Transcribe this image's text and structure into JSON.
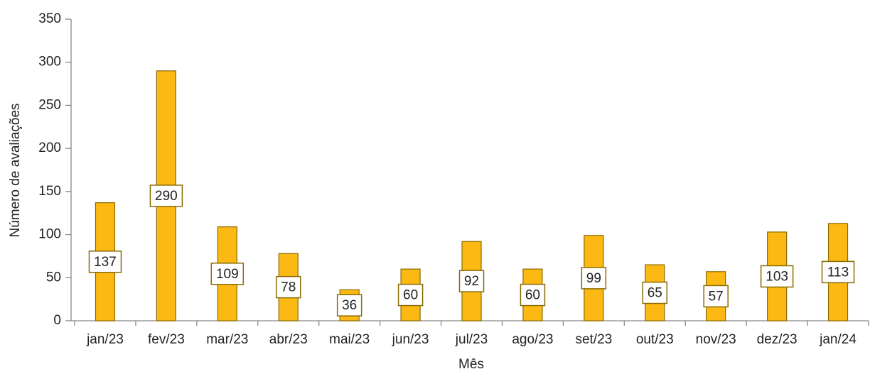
{
  "chart_data": {
    "type": "bar",
    "xlabel": "Mês",
    "ylabel": "Número de avaliações",
    "categories": [
      "jan/23",
      "fev/23",
      "mar/23",
      "abr/23",
      "mai/23",
      "jun/23",
      "jul/23",
      "ago/23",
      "set/23",
      "out/23",
      "nov/23",
      "dez/23",
      "jan/24"
    ],
    "values": [
      137,
      290,
      109,
      78,
      36,
      60,
      92,
      60,
      99,
      65,
      57,
      103,
      113
    ],
    "color": "#fdb913",
    "ylim": [
      0,
      350
    ],
    "yticks": [
      0,
      50,
      100,
      150,
      200,
      250,
      300,
      350
    ],
    "grid": false
  }
}
